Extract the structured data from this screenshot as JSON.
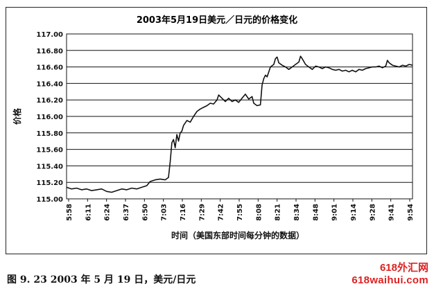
{
  "chart_data": {
    "type": "line",
    "title": "2003年5月19日美元／日元的价格变化",
    "xlabel": "时间（美国东部时间每分钟的数据）",
    "ylabel": "价格",
    "ylim": [
      115.0,
      117.0
    ],
    "yticks": [
      115.0,
      115.2,
      115.4,
      115.6,
      115.8,
      116.0,
      116.2,
      116.4,
      116.6,
      116.8,
      117.0
    ],
    "ytick_labels": [
      "115.00",
      "115.20",
      "115.40",
      "115.60",
      "115.80",
      "116.00",
      "116.20",
      "116.40",
      "116.60",
      "116.80",
      "117.00"
    ],
    "xtick_labels": [
      "5:58",
      "6:11",
      "6:24",
      "6:37",
      "6:50",
      "7:03",
      "7:16",
      "7:29",
      "7:42",
      "7:55",
      "8:08",
      "8:21",
      "8:34",
      "8:48",
      "9:01",
      "9:14",
      "9:28",
      "9:41",
      "9:54"
    ],
    "grid": "horizontal",
    "series": [
      {
        "values": [
          [
            0,
            115.14
          ],
          [
            3,
            115.12
          ],
          [
            6,
            115.13
          ],
          [
            9,
            115.11
          ],
          [
            12,
            115.12
          ],
          [
            15,
            115.1
          ],
          [
            18,
            115.11
          ],
          [
            21,
            115.12
          ],
          [
            24,
            115.09
          ],
          [
            27,
            115.08
          ],
          [
            30,
            115.1
          ],
          [
            33,
            115.12
          ],
          [
            36,
            115.11
          ],
          [
            39,
            115.13
          ],
          [
            42,
            115.12
          ],
          [
            45,
            115.14
          ],
          [
            48,
            115.16
          ],
          [
            50,
            115.21
          ],
          [
            53,
            115.23
          ],
          [
            56,
            115.24
          ],
          [
            59,
            115.23
          ],
          [
            61,
            115.26
          ],
          [
            62,
            115.45
          ],
          [
            63,
            115.68
          ],
          [
            64,
            115.72
          ],
          [
            65,
            115.62
          ],
          [
            66,
            115.78
          ],
          [
            67,
            115.7
          ],
          [
            68,
            115.8
          ],
          [
            69,
            115.82
          ],
          [
            70,
            115.89
          ],
          [
            72,
            115.95
          ],
          [
            74,
            115.93
          ],
          [
            76,
            116.0
          ],
          [
            78,
            116.06
          ],
          [
            80,
            116.09
          ],
          [
            82,
            116.11
          ],
          [
            84,
            116.13
          ],
          [
            86,
            116.16
          ],
          [
            88,
            116.15
          ],
          [
            90,
            116.2
          ],
          [
            91,
            116.26
          ],
          [
            93,
            116.22
          ],
          [
            95,
            116.18
          ],
          [
            97,
            116.22
          ],
          [
            99,
            116.18
          ],
          [
            101,
            116.2
          ],
          [
            103,
            116.17
          ],
          [
            105,
            116.22
          ],
          [
            107,
            116.27
          ],
          [
            109,
            116.21
          ],
          [
            111,
            116.24
          ],
          [
            112,
            116.16
          ],
          [
            114,
            116.13
          ],
          [
            116,
            116.14
          ],
          [
            117,
            116.38
          ],
          [
            118,
            116.46
          ],
          [
            119,
            116.5
          ],
          [
            120,
            116.48
          ],
          [
            122,
            116.6
          ],
          [
            124,
            116.63
          ],
          [
            125,
            116.7
          ],
          [
            126,
            116.72
          ],
          [
            127,
            116.65
          ],
          [
            129,
            116.62
          ],
          [
            131,
            116.6
          ],
          [
            133,
            116.57
          ],
          [
            135,
            116.6
          ],
          [
            137,
            116.63
          ],
          [
            139,
            116.66
          ],
          [
            140,
            116.73
          ],
          [
            141,
            116.7
          ],
          [
            143,
            116.63
          ],
          [
            145,
            116.6
          ],
          [
            147,
            116.57
          ],
          [
            149,
            116.61
          ],
          [
            151,
            116.6
          ],
          [
            153,
            116.58
          ],
          [
            155,
            116.6
          ],
          [
            157,
            116.59
          ],
          [
            159,
            116.57
          ],
          [
            161,
            116.56
          ],
          [
            163,
            116.57
          ],
          [
            165,
            116.55
          ],
          [
            167,
            116.56
          ],
          [
            169,
            116.54
          ],
          [
            171,
            116.56
          ],
          [
            173,
            116.54
          ],
          [
            175,
            116.57
          ],
          [
            177,
            116.56
          ],
          [
            179,
            116.58
          ],
          [
            181,
            116.59
          ],
          [
            183,
            116.6
          ],
          [
            185,
            116.6
          ],
          [
            187,
            116.61
          ],
          [
            189,
            116.59
          ],
          [
            191,
            116.61
          ],
          [
            192,
            116.68
          ],
          [
            193,
            116.65
          ],
          [
            195,
            116.62
          ],
          [
            197,
            116.61
          ],
          [
            199,
            116.6
          ],
          [
            201,
            116.62
          ],
          [
            203,
            116.61
          ],
          [
            205,
            116.63
          ],
          [
            207,
            116.62
          ]
        ]
      }
    ]
  },
  "caption": "图 9. 23    2003 年 5 月 19 日，美元/日元",
  "watermark": {
    "line1": "618外汇网",
    "line2": "618waihui.com"
  }
}
